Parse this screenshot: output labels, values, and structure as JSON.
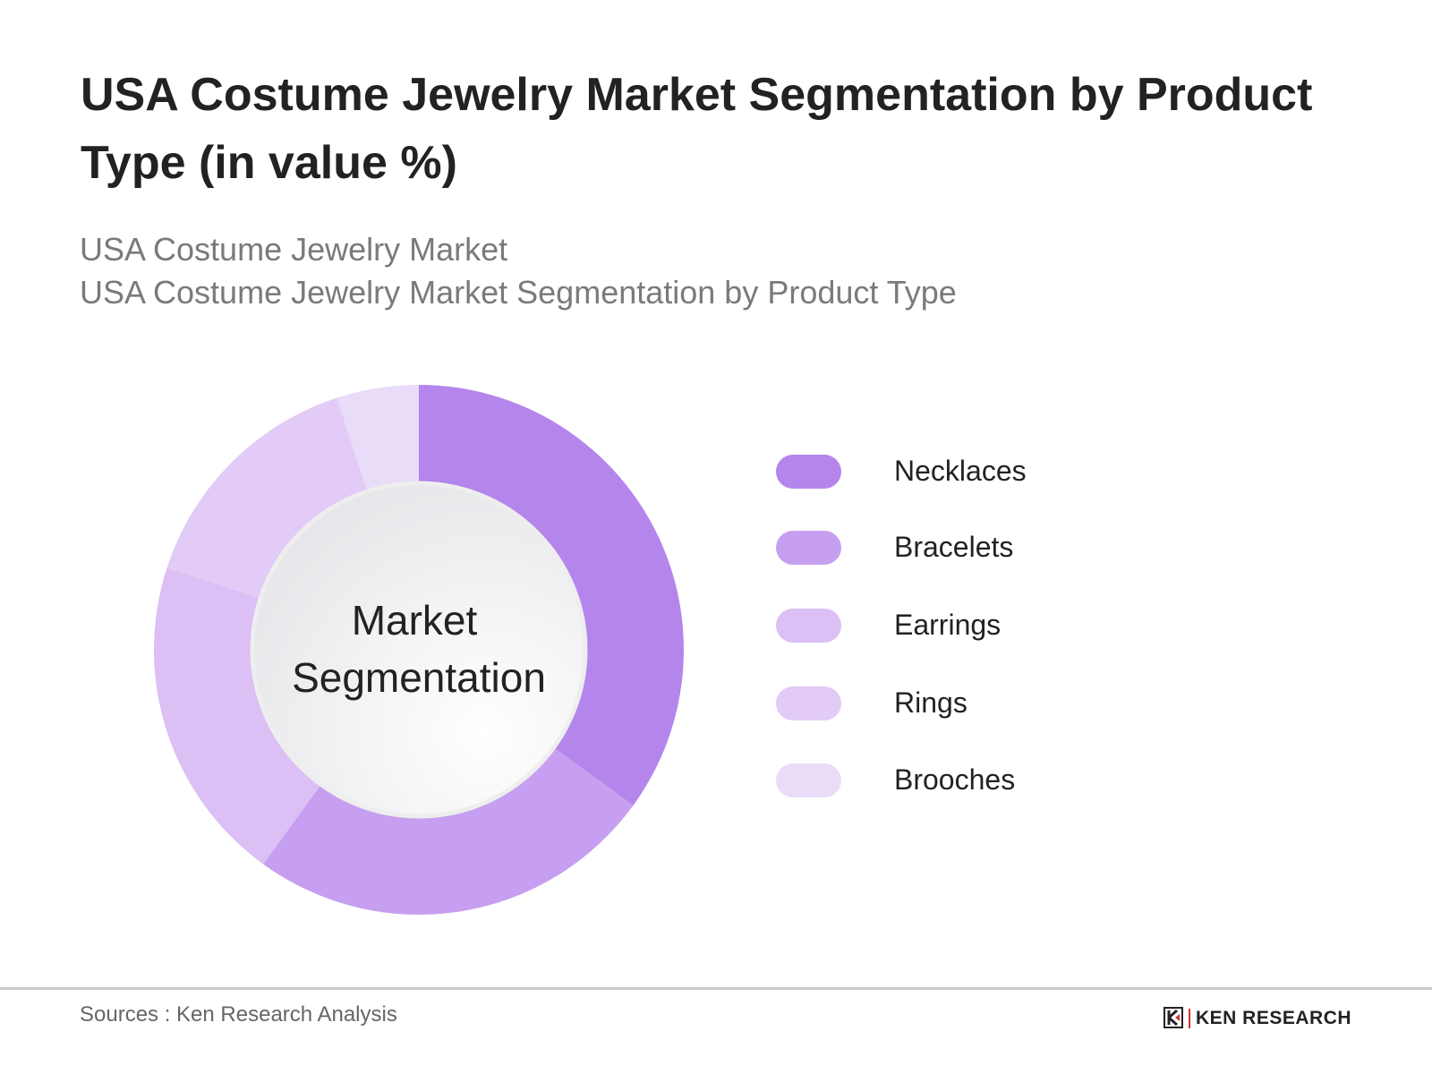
{
  "title": "USA Costume Jewelry Market Segmentation by Product Type (in value %)",
  "subtitle_line1": "USA Costume Jewelry Market",
  "subtitle_line2": "USA Costume Jewelry Market Segmentation by Product Type",
  "chart_data": {
    "type": "pie",
    "variant": "donut",
    "center_label": [
      "Market",
      "Segmentation"
    ],
    "categories": [
      "Necklaces",
      "Bracelets",
      "Earrings",
      "Rings",
      "Brooches"
    ],
    "values": [
      35,
      25,
      20,
      15,
      5
    ],
    "colors": [
      "#b486ec",
      "#c79ff0",
      "#dbbff5",
      "#e2cbf6",
      "#e9dcf9"
    ],
    "legend_position": "right",
    "data_labels": false
  },
  "footer": {
    "source": "Sources : Ken Research Analysis",
    "logo_text": "KEN RESEARCH"
  }
}
